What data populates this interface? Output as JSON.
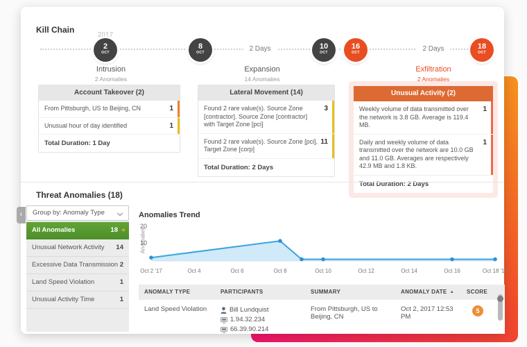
{
  "colors": {
    "accent_orange": "#e84e21",
    "node_dark": "#434343",
    "selected_green": "#4e8f2a",
    "bar_yellow": "#e5c11d",
    "bar_orange": "#ef8230",
    "bar_red": "#e96a4a",
    "score_badge": "#ee8f35",
    "card_header_orange": "#de6a33",
    "backdrop_gradient": [
      "#f2136e",
      "#f14a2b",
      "#f6921e"
    ]
  },
  "kill_chain": {
    "title": "Kill Chain",
    "year": "2017",
    "nodes": [
      {
        "day": "2",
        "month": "OCT"
      },
      {
        "day": "8",
        "month": "OCT"
      },
      {
        "day": "10",
        "month": "OCT"
      },
      {
        "day": "16",
        "month": "OCT"
      },
      {
        "day": "18",
        "month": "OCT"
      }
    ],
    "gaps": [
      "2 Days",
      "2 Days"
    ],
    "phases": [
      {
        "name": "Intrusion",
        "count": "2 Anomalies"
      },
      {
        "name": "Expansion",
        "count": "14 Anomalies"
      },
      {
        "name": "Exfiltration",
        "count": "2 Anomalies"
      }
    ],
    "cards": [
      {
        "header": "Account Takeover (2)",
        "rows": [
          {
            "text": "From Pittsburgh, US to Beijing, CN",
            "count": "1"
          },
          {
            "text": "Unusual hour of day identified",
            "count": "1"
          }
        ],
        "footer": "Total Duration: 1 Day"
      },
      {
        "header": "Lateral Movement (14)",
        "rows": [
          {
            "text": "Found 2 rare value(s). Source Zone [contractor]. Source Zone [contractor] with Target Zone [pci]",
            "count": "3"
          },
          {
            "text": "Found 2 rare value(s). Source Zone [pci], Target Zone [corp]",
            "count": "11"
          }
        ],
        "footer": "Total Duration: 2 Days"
      },
      {
        "header": "Unusual Activity (2)",
        "rows": [
          {
            "text": "Weekly volume of data transmitted over the network is 3.8 GB. Average is 119.4 MB.",
            "count": "1"
          },
          {
            "text": "Daily and weekly volume of data transmitted over the network are 10.0 GB and 11.0 GB. Averages are respectively 42.9 MB and 1.8 KB.",
            "count": "1"
          }
        ],
        "footer": "Total Duration: 2 Days"
      }
    ]
  },
  "threat_anomalies": {
    "title": "Threat Anomalies (18)",
    "collapse_icon": "‹",
    "group_by": "Group by: Anomaly Type",
    "list": [
      {
        "label": "All Anomalies",
        "count": "18",
        "selected": true
      },
      {
        "label": "Unusual Network Activity",
        "count": "14",
        "selected": false
      },
      {
        "label": "Excessive Data Transmission",
        "count": "2",
        "selected": false
      },
      {
        "label": "Land Speed Violation",
        "count": "1",
        "selected": false
      },
      {
        "label": "Unusual Activity Time",
        "count": "1",
        "selected": false
      }
    ],
    "table": {
      "headers": [
        "ANOMALY TYPE",
        "PARTICIPANTS",
        "SUMMARY",
        "ANOMALY DATE",
        "SCORE"
      ],
      "sort_indicator": "▲",
      "rows": [
        {
          "anomaly_type": "Land Speed Violation",
          "participants": [
            "Bill Lundquist",
            "1.94.32.234",
            "66.39.90.214"
          ],
          "summary": "From Pittsburgh, US to Beijing, CN",
          "anomaly_date": "Oct 2, 2017 12:53 PM",
          "score": "5"
        }
      ]
    }
  },
  "chart_data": {
    "type": "area",
    "title": "Anomalies Trend",
    "ylabel": "Anomalies",
    "x": [
      "Oct 2 '17",
      "Oct 4",
      "Oct 6",
      "Oct 8",
      "Oct 10",
      "Oct 12",
      "Oct 14",
      "Oct 16",
      "Oct 18 '17"
    ],
    "day_range": [
      2,
      18
    ],
    "points": [
      {
        "day": 2,
        "value": 2
      },
      {
        "day": 8,
        "value": 12
      },
      {
        "day": 9,
        "value": 1
      },
      {
        "day": 10,
        "value": 1
      },
      {
        "day": 16,
        "value": 1
      },
      {
        "day": 18,
        "value": 1
      }
    ],
    "ylim": [
      0,
      20
    ],
    "yticks": [
      10,
      20
    ],
    "grid": false,
    "legend": "none",
    "line_color": "#3aa3de",
    "fill_color": "#c9e6f8",
    "marker_color": "#2b94cf"
  }
}
